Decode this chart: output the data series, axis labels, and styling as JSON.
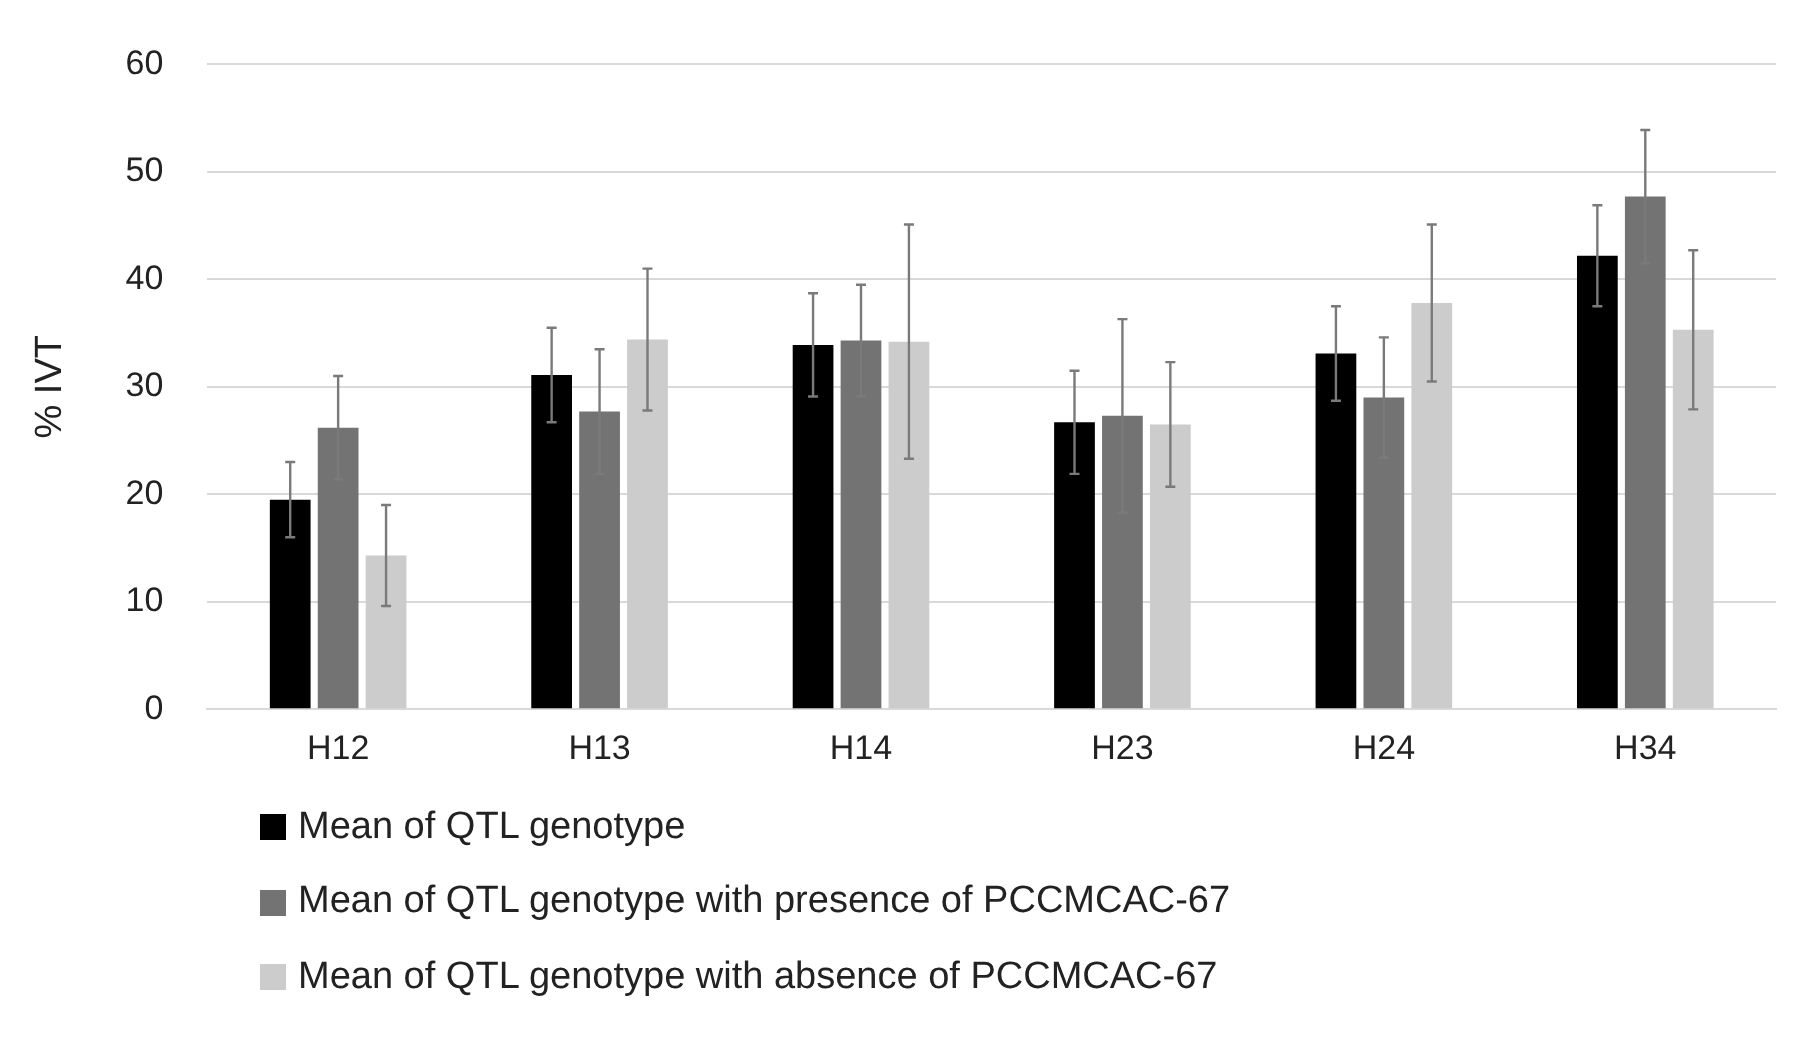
{
  "chart_data": {
    "type": "bar",
    "ylabel": "% IVT",
    "categories": [
      "H12",
      "H13",
      "H14",
      "H23",
      "H24",
      "H34"
    ],
    "series": [
      {
        "name": "Mean of QTL genotype",
        "color": "#000000",
        "values": [
          19.5,
          31.1,
          33.9,
          26.7,
          33.1,
          42.2
        ],
        "errors": [
          3.5,
          4.4,
          4.8,
          4.8,
          4.4,
          4.7
        ]
      },
      {
        "name": "Mean of QTL genotype with presence of PCCMCAC-67",
        "color": "#737373",
        "values": [
          26.2,
          27.7,
          34.3,
          27.3,
          29.0,
          47.7
        ],
        "errors": [
          4.8,
          5.8,
          5.2,
          9.0,
          5.6,
          6.2
        ]
      },
      {
        "name": "Mean of QTL genotype with absence of PCCMCAC-67",
        "color": "#cccccc",
        "values": [
          14.3,
          34.4,
          34.2,
          26.5,
          37.8,
          35.3
        ],
        "errors": [
          4.7,
          6.6,
          10.9,
          5.8,
          7.3,
          7.4
        ]
      }
    ],
    "ylim": [
      0,
      60
    ],
    "yticks": [
      0,
      10,
      20,
      30,
      40,
      50,
      60
    ],
    "grid": "y",
    "legend": "bottom"
  }
}
